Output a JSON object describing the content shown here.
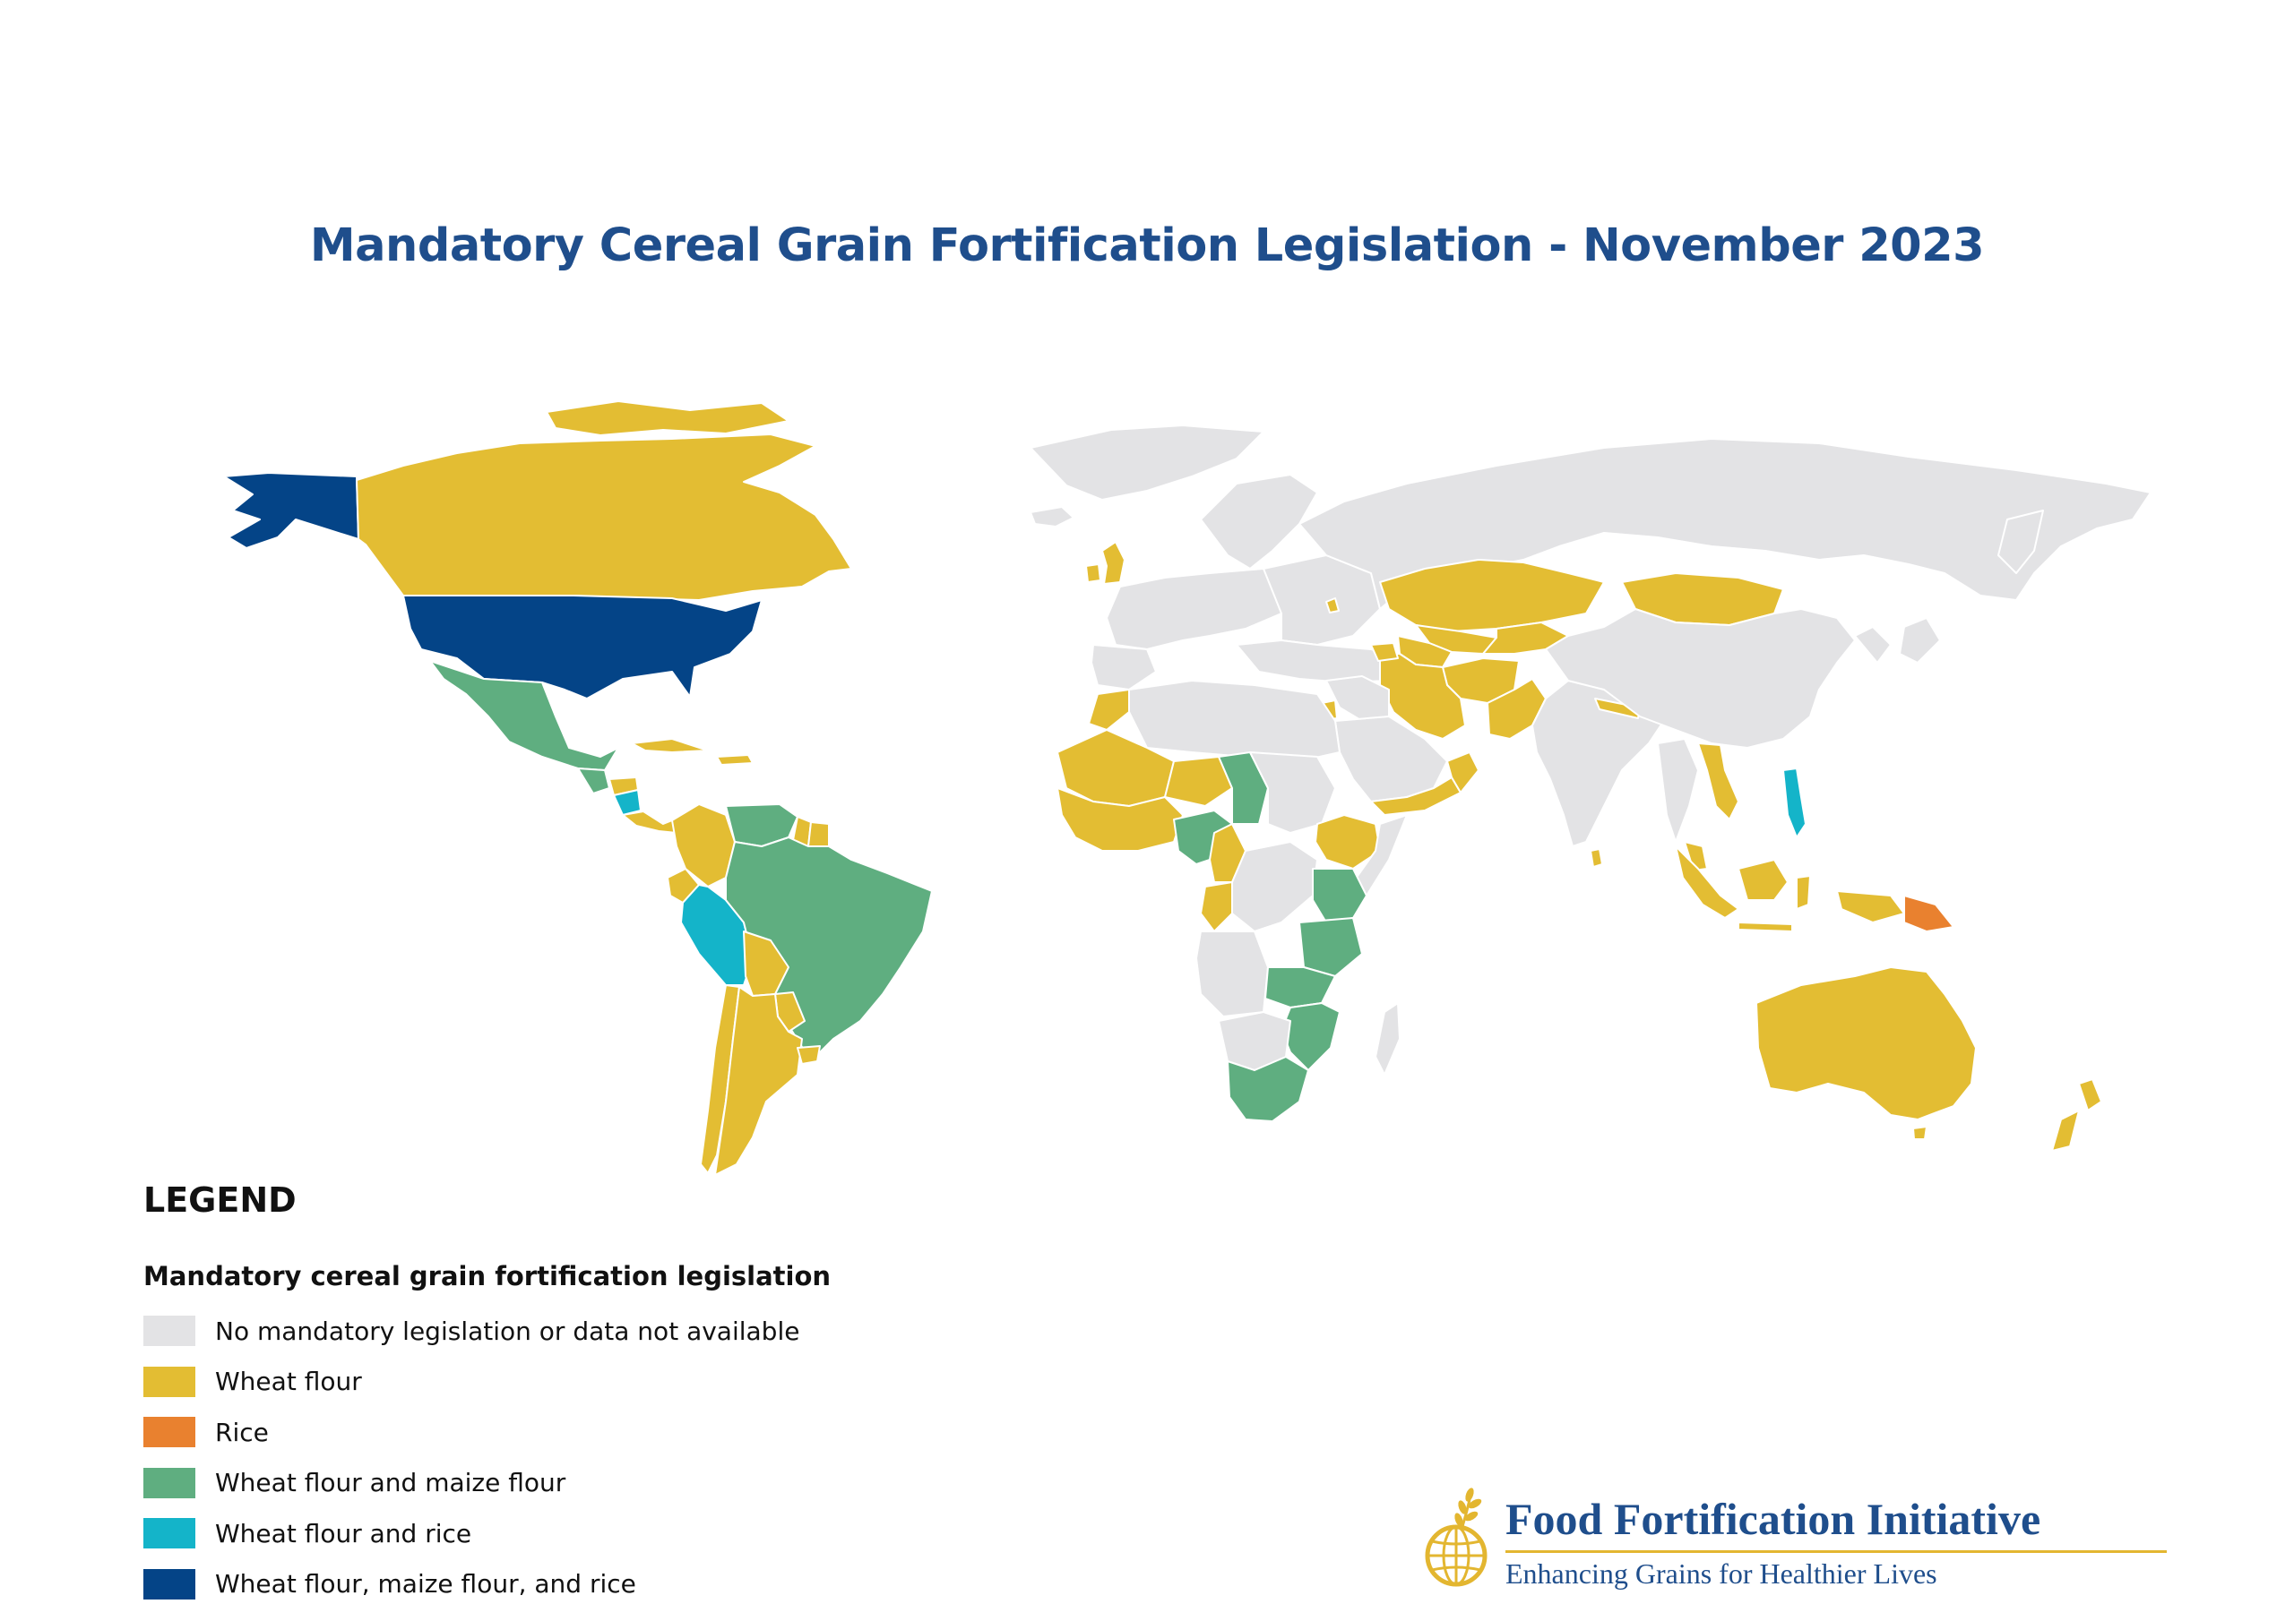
{
  "title": "Mandatory Cereal Grain Fortification Legislation - November 2023",
  "colors": {
    "none": "#e3e3e5",
    "wheat": "#e3bd33",
    "rice": "#e9812f",
    "wheat_maize": "#5fae80",
    "wheat_rice": "#14b4c9",
    "wheat_maize_rice": "#044487"
  },
  "legend": {
    "heading": "LEGEND",
    "subheading": "Mandatory cereal grain fortification legislation",
    "items": [
      {
        "label": "No mandatory legislation or data not available",
        "color": "#e3e3e5"
      },
      {
        "label": "Wheat flour",
        "color": "#e3bd33"
      },
      {
        "label": "Rice",
        "color": "#e9812f"
      },
      {
        "label": "Wheat flour and maize flour",
        "color": "#5fae80"
      },
      {
        "label": "Wheat flour and rice",
        "color": "#14b4c9"
      },
      {
        "label": "Wheat flour, maize flour, and rice",
        "color": "#044487"
      }
    ]
  },
  "logo": {
    "name": "Food Fortification Initiative",
    "tagline": "Enhancing Grains for Healthier Lives",
    "icon": "wheat-globe-icon"
  }
}
